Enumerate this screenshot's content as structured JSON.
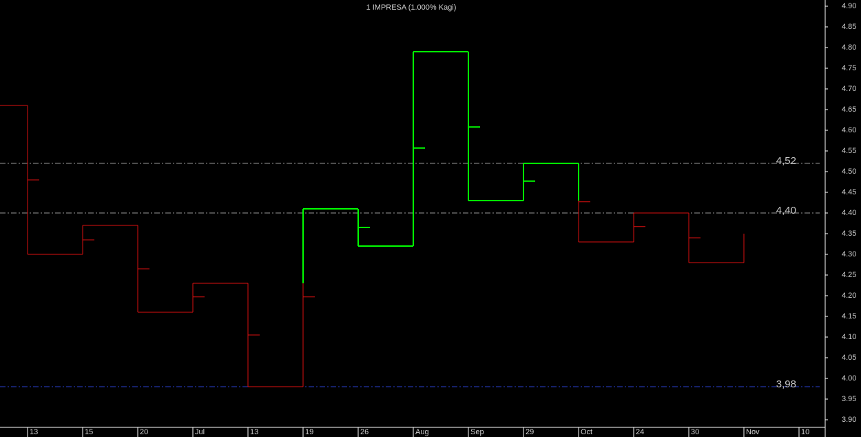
{
  "chart_data": {
    "type": "kagi",
    "title": "1 IMPRESA (1.000% Kagi)",
    "categories": [
      "13",
      "15",
      "20",
      "Jul",
      "13",
      "19",
      "26",
      "Aug",
      "Sep",
      "29",
      "Oct",
      "24",
      "30",
      "Nov",
      "10"
    ],
    "values": [
      4.66,
      4.3,
      4.37,
      4.16,
      4.23,
      3.98,
      4.41,
      4.32,
      4.79,
      4.43,
      4.52,
      4.33,
      4.4,
      4.28,
      4.35
    ],
    "marker_values": [
      4.48,
      4.335,
      4.265,
      4.197,
      4.105,
      4.197,
      4.365,
      4.557,
      4.608,
      4.477,
      4.427,
      4.367,
      4.34
    ],
    "up_color": "#00ff00",
    "down_color": "#dd1111",
    "levels": [
      {
        "value": 4.52,
        "label": "4,52",
        "color": "#9a9a9a"
      },
      {
        "value": 4.4,
        "label": "4,40",
        "color": "#9a9a9a"
      },
      {
        "value": 3.98,
        "label": "3,98",
        "color": "#2a3fd0"
      }
    ],
    "ylim": [
      3.885,
      4.915
    ],
    "yticks": [
      {
        "value": 3.9,
        "label": "3.90"
      },
      {
        "value": 3.95,
        "label": "3.95"
      },
      {
        "value": 4.0,
        "label": "4.00"
      },
      {
        "value": 4.05,
        "label": "4.05"
      },
      {
        "value": 4.1,
        "label": "4.10"
      },
      {
        "value": 4.15,
        "label": "4.15"
      },
      {
        "value": 4.2,
        "label": "4.20"
      },
      {
        "value": 4.25,
        "label": "4.25"
      },
      {
        "value": 4.3,
        "label": "4.30"
      },
      {
        "value": 4.35,
        "label": "4.35"
      },
      {
        "value": 4.4,
        "label": "4.40"
      },
      {
        "value": 4.45,
        "label": "4.45"
      },
      {
        "value": 4.5,
        "label": "4.50"
      },
      {
        "value": 4.55,
        "label": "4.55"
      },
      {
        "value": 4.6,
        "label": "4.60"
      },
      {
        "value": 4.65,
        "label": "4.65"
      },
      {
        "value": 4.7,
        "label": "4.70"
      },
      {
        "value": 4.75,
        "label": "4.75"
      },
      {
        "value": 4.8,
        "label": "4.80"
      },
      {
        "value": 4.85,
        "label": "4.85"
      },
      {
        "value": 4.9,
        "label": "4.90"
      }
    ]
  }
}
